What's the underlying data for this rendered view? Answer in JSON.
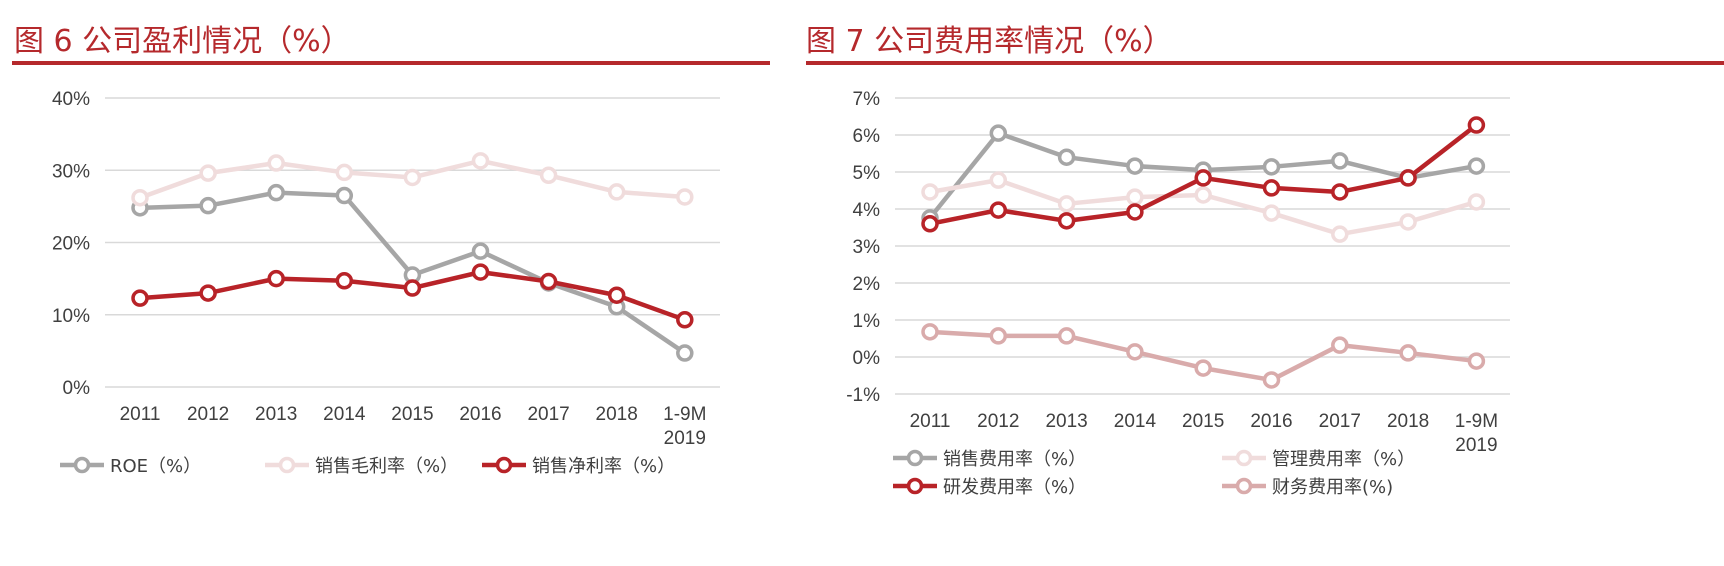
{
  "chart_data": [
    {
      "type": "line",
      "title": "图 6 公司盈利情况（%）",
      "categories": [
        "2011",
        "2012",
        "2013",
        "2014",
        "2015",
        "2016",
        "2017",
        "2018",
        "1-9M 2019"
      ],
      "ylim": [
        0,
        40
      ],
      "yticks": [
        "0%",
        "10%",
        "20%",
        "30%",
        "40%"
      ],
      "grid": true,
      "legend_position": "bottom",
      "series": [
        {
          "name": "ROE（%）",
          "color": "#a6a6a6",
          "values": [
            24.8,
            25.1,
            26.9,
            26.5,
            15.5,
            18.8,
            14.4,
            11.1,
            4.7
          ]
        },
        {
          "name": "销售毛利率（%）",
          "color": "#f0dcdc",
          "values": [
            26.2,
            29.6,
            31.0,
            29.7,
            29.0,
            31.3,
            29.3,
            27.0,
            26.3
          ]
        },
        {
          "name": "销售净利率（%）",
          "color": "#b82328",
          "values": [
            12.3,
            13.0,
            15.0,
            14.7,
            13.7,
            15.9,
            14.6,
            12.7,
            9.3
          ]
        }
      ]
    },
    {
      "type": "line",
      "title": "图 7 公司费用率情况（%）",
      "categories": [
        "2011",
        "2012",
        "2013",
        "2014",
        "2015",
        "2016",
        "2017",
        "2018",
        "1-9M 2019"
      ],
      "ylim": [
        -1,
        7
      ],
      "yticks": [
        "-1%",
        "0%",
        "1%",
        "2%",
        "3%",
        "4%",
        "5%",
        "6%",
        "7%"
      ],
      "grid": true,
      "legend_position": "bottom",
      "series": [
        {
          "name": "销售费用率（%）",
          "color": "#a6a6a6",
          "values": [
            3.76,
            6.05,
            5.4,
            5.16,
            5.05,
            5.14,
            5.3,
            4.84,
            5.16
          ]
        },
        {
          "name": "管理费用率（%）",
          "color": "#f0dcdc",
          "values": [
            4.46,
            4.78,
            4.14,
            4.32,
            4.38,
            3.89,
            3.32,
            3.65,
            4.19
          ]
        },
        {
          "name": "研发费用率（%）",
          "color": "#b82328",
          "values": [
            3.6,
            3.97,
            3.68,
            3.92,
            4.84,
            4.57,
            4.46,
            4.84,
            6.27
          ]
        },
        {
          "name": "财务费用率(%)",
          "color": "#d9abab",
          "values": [
            0.68,
            0.57,
            0.57,
            0.14,
            -0.3,
            -0.62,
            0.32,
            0.11,
            -0.11
          ]
        }
      ]
    }
  ]
}
